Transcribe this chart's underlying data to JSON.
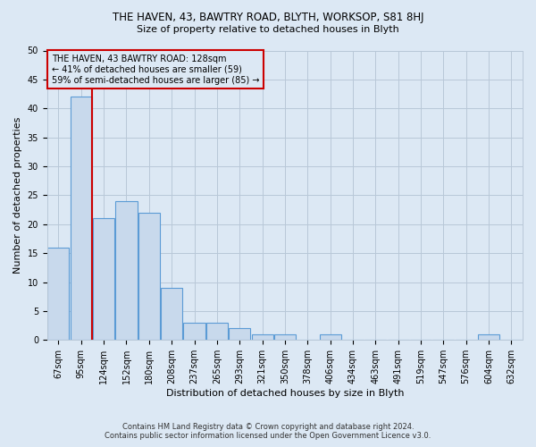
{
  "title": "THE HAVEN, 43, BAWTRY ROAD, BLYTH, WORKSOP, S81 8HJ",
  "subtitle": "Size of property relative to detached houses in Blyth",
  "xlabel": "Distribution of detached houses by size in Blyth",
  "ylabel": "Number of detached properties",
  "footer1": "Contains HM Land Registry data © Crown copyright and database right 2024.",
  "footer2": "Contains public sector information licensed under the Open Government Licence v3.0.",
  "categories": [
    "67sqm",
    "95sqm",
    "124sqm",
    "152sqm",
    "180sqm",
    "208sqm",
    "237sqm",
    "265sqm",
    "293sqm",
    "321sqm",
    "350sqm",
    "378sqm",
    "406sqm",
    "434sqm",
    "463sqm",
    "491sqm",
    "519sqm",
    "547sqm",
    "576sqm",
    "604sqm",
    "632sqm"
  ],
  "values": [
    16,
    42,
    21,
    24,
    22,
    9,
    3,
    3,
    2,
    1,
    1,
    0,
    1,
    0,
    0,
    0,
    0,
    0,
    0,
    1,
    0
  ],
  "bar_color": "#c8d9ec",
  "bar_edge_color": "#5b9bd5",
  "highlight_line_color": "#cc0000",
  "annotation_title": "THE HAVEN, 43 BAWTRY ROAD: 128sqm",
  "annotation_line1": "← 41% of detached houses are smaller (59)",
  "annotation_line2": "59% of semi-detached houses are larger (85) →",
  "annotation_box_color": "#cc0000",
  "ylim": [
    0,
    50
  ],
  "yticks": [
    0,
    5,
    10,
    15,
    20,
    25,
    30,
    35,
    40,
    45,
    50
  ],
  "grid_color": "#b8c8d8",
  "background_color": "#dce8f4",
  "title_fontsize": 8.5,
  "subtitle_fontsize": 8,
  "axis_label_fontsize": 8,
  "tick_fontsize": 7,
  "annotation_fontsize": 7
}
